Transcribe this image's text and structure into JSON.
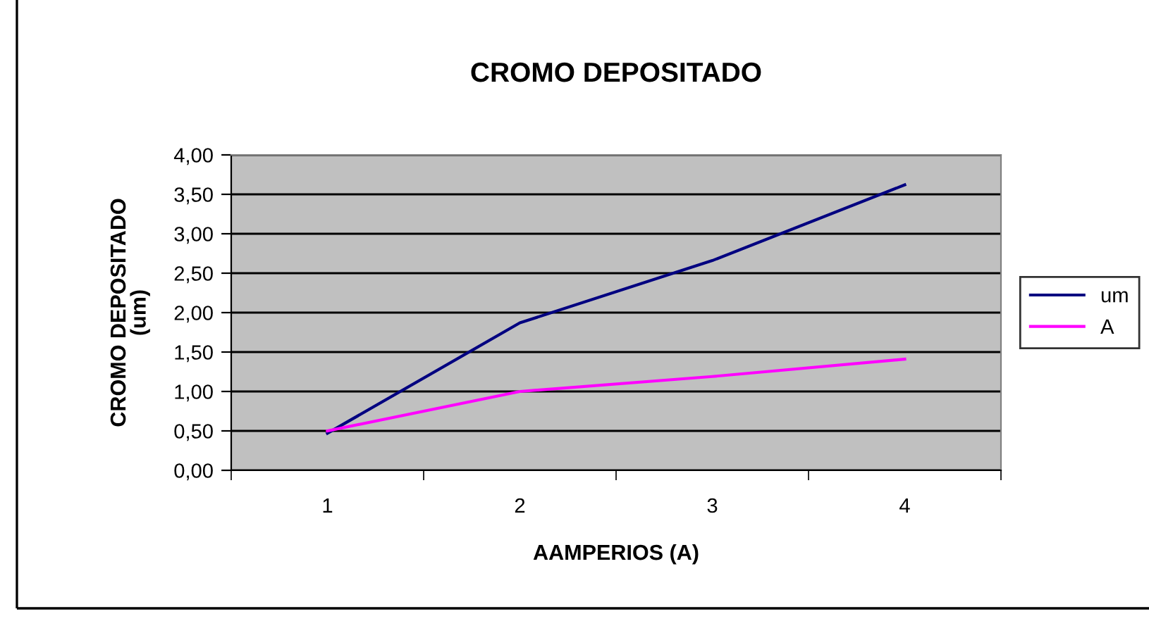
{
  "chart_data": {
    "type": "line",
    "title": "CROMO DEPOSITADO",
    "xlabel": "AAMPERIOS (A)",
    "ylabel": "CROMO DEPOSITADO\n(um)",
    "categories": [
      "1",
      "2",
      "3",
      "4"
    ],
    "series": [
      {
        "name": "um",
        "color": "#000080",
        "values": [
          0.47,
          1.87,
          2.66,
          3.62
        ]
      },
      {
        "name": "A",
        "color": "#ff00ff",
        "values": [
          0.5,
          1.0,
          1.19,
          1.41
        ]
      }
    ],
    "ylim": [
      0,
      4
    ],
    "yticks": [
      {
        "value": 0,
        "label": "0,00"
      },
      {
        "value": 0.5,
        "label": "0,50"
      },
      {
        "value": 1,
        "label": "1,00"
      },
      {
        "value": 1.5,
        "label": "1,50"
      },
      {
        "value": 2,
        "label": "2,00"
      },
      {
        "value": 2.5,
        "label": "2,50"
      },
      {
        "value": 3,
        "label": "3,00"
      },
      {
        "value": 3.5,
        "label": "3,50"
      },
      {
        "value": 4,
        "label": "4,00"
      }
    ],
    "grid": "y",
    "legend": "right",
    "marker": "none",
    "line_style": "solid"
  }
}
